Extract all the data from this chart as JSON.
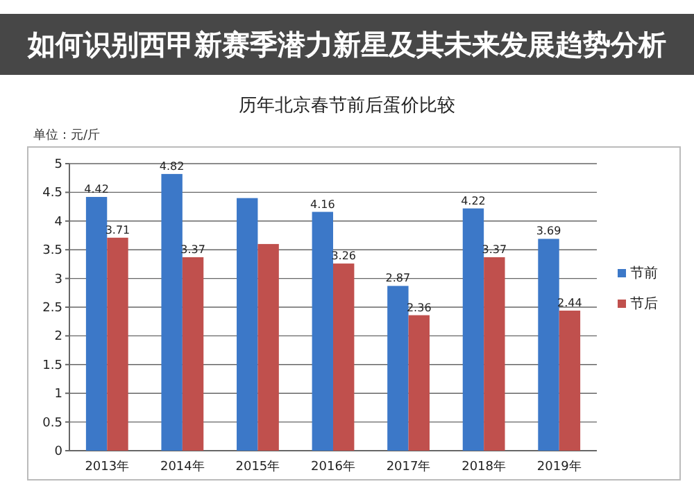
{
  "chart_data": {
    "type": "bar",
    "title": "历年北京春节前后蛋价比较",
    "categories": [
      "2013年",
      "2014年",
      "2015年",
      "2016年",
      "2017年",
      "2018年",
      "2019年"
    ],
    "series": [
      {
        "name": "节前",
        "color": "#3c78c8",
        "values": [
          4.42,
          4.82,
          4.4,
          4.16,
          2.87,
          4.22,
          3.69
        ],
        "value_labels": [
          "4.42",
          "4.82",
          null,
          "4.16",
          "2.87",
          "4.22",
          "3.69"
        ]
      },
      {
        "name": "节后",
        "color": "#c0504d",
        "values": [
          3.71,
          3.37,
          3.6,
          3.26,
          2.36,
          3.37,
          2.44
        ],
        "value_labels": [
          "3.71",
          "3.37",
          null,
          "3.26",
          "2.36",
          "3.37",
          "2.44"
        ]
      }
    ],
    "ylim": [
      0,
      5
    ],
    "yticks": [
      0,
      0.5,
      1,
      1.5,
      2,
      2.5,
      3,
      3.5,
      4,
      4.5,
      5
    ],
    "grid": "y",
    "legend": "right",
    "annotations": [
      "单位：元/斤",
      "如何识别西甲新赛季潜力新星及其未来发展趋势分析"
    ]
  }
}
